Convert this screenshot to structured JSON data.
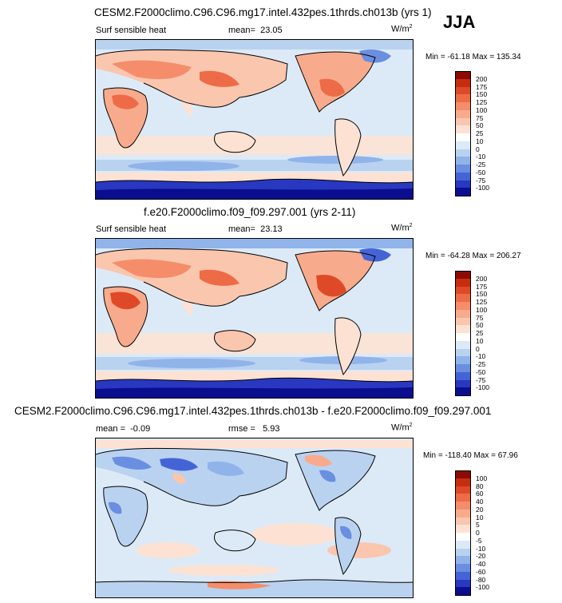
{
  "season": "JJA",
  "unit_label": "W/m",
  "unit_sup": "2",
  "panels": [
    {
      "title": "CESM2.F2000climo.C96.C96.mg17.intel.432pes.1thrds.ch013b (yrs 1)",
      "field": "Surf sensible heat",
      "mean_label": "mean=",
      "mean": "23.05",
      "minmax": "Min = -61.18 Max = 135.34",
      "colorbar": {
        "ticks": [
          "200",
          "175",
          "150",
          "125",
          "100",
          "75",
          "50",
          "25",
          "10",
          "0",
          "-10",
          "-25",
          "-50",
          "-75",
          "-100"
        ],
        "colors": [
          "#8c0a00",
          "#c62d0e",
          "#de4a28",
          "#ee6b47",
          "#f58d6a",
          "#f8ab8c",
          "#fac6ae",
          "#fde2d3",
          "#ffffff",
          "#dceaf7",
          "#b9d2f0",
          "#90b3ea",
          "#6a8ee0",
          "#4464d6",
          "#2838c0",
          "#0b0d8f"
        ]
      }
    },
    {
      "title": "f.e20.F2000climo.f09_f09.297.001 (yrs 2-11)",
      "field": "Surf sensible heat",
      "mean_label": "mean=",
      "mean": "23.13",
      "minmax": "Min = -64.28 Max = 206.27",
      "colorbar": {
        "ticks": [
          "200",
          "175",
          "150",
          "125",
          "100",
          "75",
          "50",
          "25",
          "10",
          "0",
          "-10",
          "-25",
          "-50",
          "-75",
          "-100"
        ],
        "colors": [
          "#8c0a00",
          "#c62d0e",
          "#de4a28",
          "#ee6b47",
          "#f58d6a",
          "#f8ab8c",
          "#fac6ae",
          "#fde2d3",
          "#ffffff",
          "#dceaf7",
          "#b9d2f0",
          "#90b3ea",
          "#6a8ee0",
          "#4464d6",
          "#2838c0",
          "#0b0d8f"
        ]
      }
    },
    {
      "title": "CESM2.F2000climo.C96.C96.mg17.intel.432pes.1thrds.ch013b - f.e20.F2000climo.f09_f09.297.001",
      "field": "",
      "mean_label": "mean =",
      "mean": "-0.09",
      "rmse_label": "rmse =",
      "rmse": "5.93",
      "minmax": "Min = -118.40 Max = 67.96",
      "colorbar": {
        "ticks": [
          "100",
          "80",
          "60",
          "40",
          "20",
          "10",
          "5",
          "0",
          "-5",
          "-10",
          "-20",
          "-40",
          "-60",
          "-80",
          "-100"
        ],
        "colors": [
          "#8c0a00",
          "#c62d0e",
          "#de4a28",
          "#ee6b47",
          "#f58d6a",
          "#f8ab8c",
          "#fac6ae",
          "#fde2d3",
          "#ffffff",
          "#dceaf7",
          "#b9d2f0",
          "#90b3ea",
          "#6a8ee0",
          "#4464d6",
          "#2838c0",
          "#0b0d8f"
        ]
      }
    }
  ],
  "chart_data": [
    {
      "type": "heatmap",
      "title": "CESM2.F2000climo.C96.C96.mg17.intel.432pes.1thrds.ch013b (yrs 1)",
      "variable": "Surf sensible heat",
      "units": "W/m2",
      "season": "JJA",
      "mean": 23.05,
      "min": -61.18,
      "max": 135.34,
      "contour_levels": [
        -100,
        -75,
        -50,
        -25,
        -10,
        0,
        10,
        25,
        50,
        75,
        100,
        125,
        150,
        175,
        200
      ]
    },
    {
      "type": "heatmap",
      "title": "f.e20.F2000climo.f09_f09.297.001 (yrs 2-11)",
      "variable": "Surf sensible heat",
      "units": "W/m2",
      "mean": 23.13,
      "min": -64.28,
      "max": 206.27,
      "contour_levels": [
        -100,
        -75,
        -50,
        -25,
        -10,
        0,
        10,
        25,
        50,
        75,
        100,
        125,
        150,
        175,
        200
      ]
    },
    {
      "type": "heatmap",
      "title": "CESM2.F2000climo.C96.C96.mg17.intel.432pes.1thrds.ch013b - f.e20.F2000climo.f09_f09.297.001",
      "units": "W/m2",
      "mean": -0.09,
      "rmse": 5.93,
      "min": -118.4,
      "max": 67.96,
      "contour_levels": [
        -100,
        -80,
        -60,
        -40,
        -20,
        -10,
        -5,
        0,
        5,
        10,
        20,
        40,
        60,
        80,
        100
      ]
    }
  ]
}
